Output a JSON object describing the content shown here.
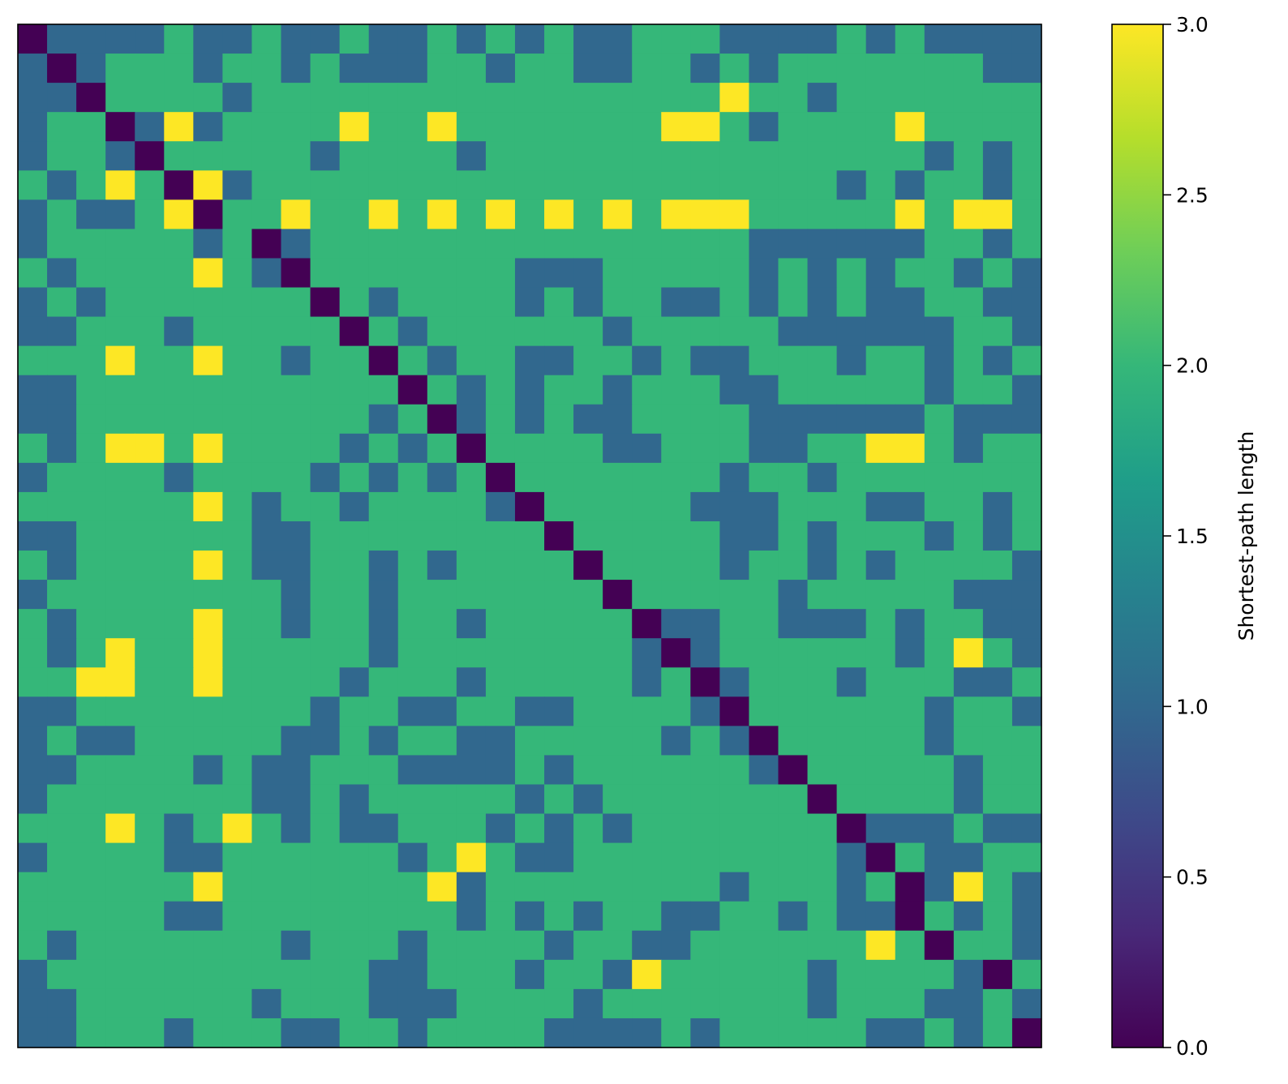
{
  "chart_data": {
    "type": "heatmap",
    "title": "",
    "xlabel": "",
    "ylabel": "",
    "n": 35,
    "colormap": "viridis",
    "colors": {
      "0": "#440154",
      "1": "#31688e",
      "2": "#35b779",
      "3": "#fde725"
    },
    "matrix_rows": [
      "01111211211211212121122211112121111",
      "10122212212111221221122121222222211",
      "11022221222222222222222232212222222",
      "12201312222322322222223321222232222",
      "12210222221222212222222222222221212",
      "21232031222222222222222222221212212",
      "12112302232232323232323332222232332",
      "12222212012222222222222221111112212",
      "21222232102222222111222221212122121",
      "12122222220212222121221121212112211",
      "11222122222021222222122222111111221",
      "22232232212202122112212112221221212",
      "11222222222220212122122211222221221",
      "11222222222212012121122221111112111",
      "21233232222121202222112221122332122",
      "12222122221212120222222212212222222",
      "22222232122122221022222111222112212",
      "11222222112222222202222211212221212",
      "21222232112212122220222212212122221",
      "12222222212212222222022222122222111",
      "21222232212212212222201122111212211",
      "21232232222212222222210122222212321",
      "22332232222122212222212012221222112",
      "11222222221221122112222102222221221",
      "12112222211212211222221210222221222",
      "11222212112221111212222221022222122",
      "12222222112122222121222222202222122",
      "22232123212112221212122222220111211",
      "12222112222221232112222222221021122",
      "22222232222222312222222212221201321",
      "22222112222222212121221122121102121",
      "21222222212221222212211222222320221",
      "12222222222211222122132222212222102",
      "11222222122211122221222222212221121",
      "11222122211221222211112122222112120"
    ],
    "colorbar": {
      "label": "Shortest-path length",
      "min": 0.0,
      "max": 3.0,
      "ticks": [
        0.0,
        0.5,
        1.0,
        1.5,
        2.0,
        2.5,
        3.0
      ],
      "tick_labels": [
        "0.0",
        "0.5",
        "1.0",
        "1.5",
        "2.0",
        "2.5",
        "3.0"
      ],
      "gradient": [
        "#440154",
        "#482878",
        "#3e4989",
        "#31688e",
        "#26828e",
        "#1f9e89",
        "#35b779",
        "#6ece58",
        "#b5de2b",
        "#fde725"
      ]
    },
    "grid": false,
    "legend": "none"
  }
}
